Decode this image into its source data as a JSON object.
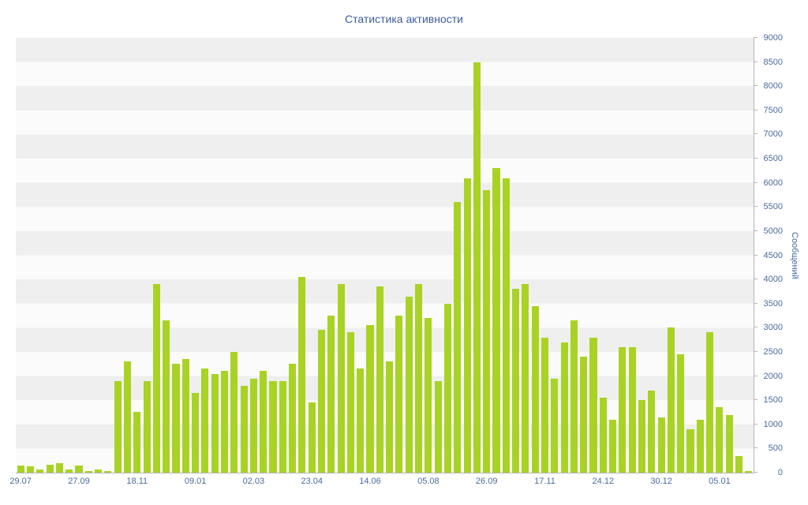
{
  "chart_data": {
    "type": "bar",
    "title": "Статистика активности",
    "ylabel": "Сообщений",
    "xlabel": "",
    "ylim": [
      0,
      9000
    ],
    "ytick_step": 500,
    "y_ticks": [
      0,
      500,
      1000,
      1500,
      2000,
      2500,
      3000,
      3500,
      4000,
      4500,
      5000,
      5500,
      6000,
      6500,
      7000,
      7500,
      8000,
      8500,
      9000
    ],
    "y_axis_position": "right",
    "grid": "horizontal-stripes",
    "legend": "none",
    "bar_color": "#a8d324",
    "stripe_color_light": "#fbfbfb",
    "stripe_color_dark": "#efefef",
    "axis_line_color": "#b5b5b5",
    "tick_text_color": "#4a6b9f",
    "title_color": "#3d5c9c",
    "x_labels": [
      "29.07",
      "27.09",
      "18.11",
      "09.01",
      "02.03",
      "23.04",
      "14.06",
      "05.08",
      "26.09",
      "17.11",
      "24.12",
      "30.12",
      "05.01"
    ],
    "x_label_every_n_bars": 6,
    "values": [
      150,
      130,
      70,
      160,
      200,
      60,
      150,
      40,
      70,
      30,
      1900,
      2300,
      1250,
      1900,
      3900,
      3150,
      2250,
      2350,
      1650,
      2150,
      2050,
      2100,
      2500,
      1800,
      1950,
      2100,
      1900,
      1900,
      2250,
      4050,
      1450,
      2950,
      3250,
      3900,
      2900,
      2150,
      3050,
      3850,
      2300,
      3250,
      3650,
      3900,
      3200,
      1900,
      3500,
      5600,
      6100,
      8500,
      5850,
      6300,
      6100,
      3800,
      3900,
      3450,
      2800,
      1950,
      2700,
      3150,
      2400,
      2800,
      1550,
      1100,
      2600,
      2600,
      1500,
      1700,
      1150,
      3000,
      2450,
      900,
      1100,
      2900,
      1350,
      1200,
      350,
      30
    ]
  }
}
